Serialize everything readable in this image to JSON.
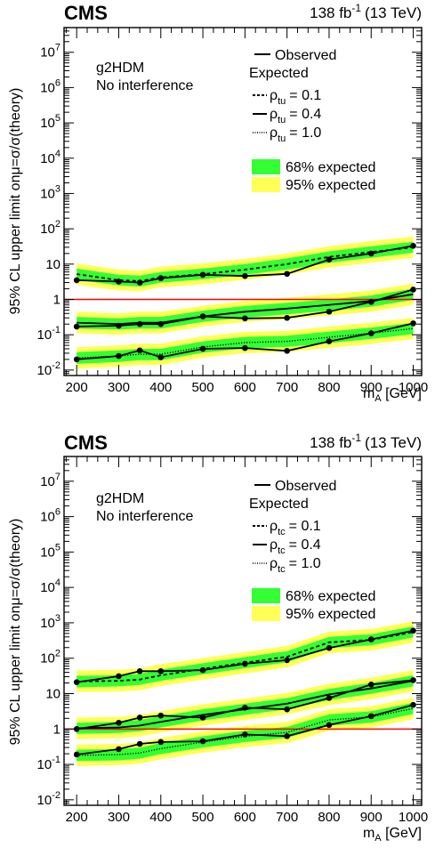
{
  "labels": {
    "experiment": "CMS",
    "lumi_value": "138 fb",
    "lumi_exp": "-1",
    "lumi_energy": "(13 TeV)",
    "model_line1": "g2HDM",
    "model_line2": "No interference",
    "observed": "Observed",
    "expected": "Expected",
    "band68": "68% expected",
    "band95": "95% expected",
    "ylabel": "95% CL upper limit onμ=σ/σ(theory)",
    "xlabel_main": "m",
    "xlabel_sub": "A",
    "xlabel_unit": " [GeV]",
    "rho_symbol": "ρ",
    "couplings": [
      {
        "value": "= 0.1",
        "style": "dashed"
      },
      {
        "value": "= 0.4",
        "style": "solid"
      },
      {
        "value": "= 1.0",
        "style": "dotted"
      }
    ]
  },
  "colors": {
    "band68": "#33ff33",
    "band95": "#ffff55",
    "reference_line": "#ff0000",
    "lines": "#000000"
  },
  "chart_data": [
    {
      "type": "line",
      "coupling_subscript": "tu",
      "x": [
        200,
        300,
        350,
        400,
        500,
        600,
        700,
        800,
        900,
        1000
      ],
      "xlim": [
        170,
        1020
      ],
      "ylim": [
        0.007,
        50000000
      ],
      "yscale": "log",
      "x_ticks": [
        200,
        300,
        400,
        500,
        600,
        700,
        800,
        900,
        1000
      ],
      "y_ticks": [
        {
          "value": 0.01,
          "label_main": "10",
          "label_exp": "-2"
        },
        {
          "value": 0.1,
          "label_main": "10",
          "label_exp": "-1"
        },
        {
          "value": 1,
          "label_main": "1",
          "label_exp": ""
        },
        {
          "value": 10,
          "label_main": "10",
          "label_exp": ""
        },
        {
          "value": 100,
          "label_main": "10",
          "label_exp": "2"
        },
        {
          "value": 1000,
          "label_main": "10",
          "label_exp": "3"
        },
        {
          "value": 10000,
          "label_main": "10",
          "label_exp": "4"
        },
        {
          "value": 100000,
          "label_main": "10",
          "label_exp": "5"
        },
        {
          "value": 1000000,
          "label_main": "10",
          "label_exp": "6"
        },
        {
          "value": 10000000,
          "label_main": "10",
          "label_exp": "7"
        }
      ],
      "reference_y": 1,
      "groups": [
        {
          "coupling": "0.1",
          "observed": [
            3.5,
            3.2,
            3.0,
            4.0,
            5.0,
            4.6,
            5.3,
            13.5,
            20.0,
            33.0
          ],
          "expected": [
            5.2,
            3.5,
            3.3,
            4.2,
            5.2,
            7.0,
            10.0,
            16.0,
            22.0,
            30.0
          ],
          "band68": [
            [
              3.6,
              7.5
            ],
            [
              2.5,
              5.0
            ],
            [
              2.3,
              4.7
            ],
            [
              3.0,
              6.0
            ],
            [
              3.7,
              7.5
            ],
            [
              5.0,
              10.0
            ],
            [
              7.0,
              14.5
            ],
            [
              11.0,
              23.0
            ],
            [
              15.0,
              32.0
            ],
            [
              21.0,
              43.0
            ]
          ],
          "band95": [
            [
              2.6,
              10.5
            ],
            [
              1.8,
              7.0
            ],
            [
              1.7,
              6.6
            ],
            [
              2.2,
              8.5
            ],
            [
              2.7,
              10.5
            ],
            [
              3.6,
              14.0
            ],
            [
              5.1,
              20.0
            ],
            [
              8.0,
              32.0
            ],
            [
              11.0,
              45.0
            ],
            [
              15.0,
              60.0
            ]
          ]
        },
        {
          "coupling": "0.4",
          "observed": [
            0.17,
            0.18,
            0.2,
            0.2,
            0.33,
            0.29,
            0.3,
            0.45,
            0.85,
            1.9
          ],
          "expected": [
            0.22,
            0.2,
            0.22,
            0.22,
            0.33,
            0.45,
            0.55,
            0.7,
            0.9,
            1.4
          ],
          "band68": [
            [
              0.15,
              0.32
            ],
            [
              0.14,
              0.29
            ],
            [
              0.15,
              0.32
            ],
            [
              0.15,
              0.32
            ],
            [
              0.23,
              0.48
            ],
            [
              0.31,
              0.65
            ],
            [
              0.38,
              0.8
            ],
            [
              0.48,
              1.0
            ],
            [
              0.62,
              1.3
            ],
            [
              0.97,
              2.0
            ]
          ],
          "band95": [
            [
              0.11,
              0.45
            ],
            [
              0.1,
              0.4
            ],
            [
              0.11,
              0.45
            ],
            [
              0.11,
              0.45
            ],
            [
              0.17,
              0.66
            ],
            [
              0.23,
              0.9
            ],
            [
              0.28,
              1.1
            ],
            [
              0.35,
              1.4
            ],
            [
              0.45,
              1.8
            ],
            [
              0.7,
              2.8
            ]
          ]
        },
        {
          "coupling": "1.0",
          "observed": [
            0.02,
            0.025,
            0.036,
            0.023,
            0.04,
            0.042,
            0.035,
            0.065,
            0.11,
            0.21
          ],
          "expected": [
            0.022,
            0.025,
            0.028,
            0.028,
            0.045,
            0.06,
            0.065,
            0.085,
            0.11,
            0.15
          ],
          "band68": [
            [
              0.015,
              0.032
            ],
            [
              0.017,
              0.036
            ],
            [
              0.019,
              0.04
            ],
            [
              0.019,
              0.04
            ],
            [
              0.031,
              0.065
            ],
            [
              0.041,
              0.087
            ],
            [
              0.045,
              0.094
            ],
            [
              0.058,
              0.123
            ],
            [
              0.076,
              0.16
            ],
            [
              0.104,
              0.217
            ]
          ],
          "band95": [
            [
              0.011,
              0.044
            ],
            [
              0.0125,
              0.05
            ],
            [
              0.014,
              0.056
            ],
            [
              0.014,
              0.056
            ],
            [
              0.0225,
              0.09
            ],
            [
              0.03,
              0.12
            ],
            [
              0.0325,
              0.13
            ],
            [
              0.0425,
              0.17
            ],
            [
              0.055,
              0.22
            ],
            [
              0.075,
              0.3
            ]
          ]
        }
      ]
    },
    {
      "type": "line",
      "coupling_subscript": "tc",
      "x": [
        200,
        300,
        350,
        400,
        500,
        600,
        700,
        800,
        900,
        1000
      ],
      "xlim": [
        170,
        1020
      ],
      "ylim": [
        0.007,
        50000000
      ],
      "yscale": "log",
      "x_ticks": [
        200,
        300,
        400,
        500,
        600,
        700,
        800,
        900,
        1000
      ],
      "y_ticks": [
        {
          "value": 0.01,
          "label_main": "10",
          "label_exp": "-2"
        },
        {
          "value": 0.1,
          "label_main": "10",
          "label_exp": "-1"
        },
        {
          "value": 1,
          "label_main": "1",
          "label_exp": ""
        },
        {
          "value": 10,
          "label_main": "10",
          "label_exp": ""
        },
        {
          "value": 100,
          "label_main": "10",
          "label_exp": "2"
        },
        {
          "value": 1000,
          "label_main": "10",
          "label_exp": "3"
        },
        {
          "value": 10000,
          "label_main": "10",
          "label_exp": "4"
        },
        {
          "value": 100000,
          "label_main": "10",
          "label_exp": "5"
        },
        {
          "value": 1000000,
          "label_main": "10",
          "label_exp": "6"
        },
        {
          "value": 10000000,
          "label_main": "10",
          "label_exp": "7"
        }
      ],
      "reference_y": 1,
      "groups": [
        {
          "coupling": "0.1",
          "observed": [
            21.0,
            31.0,
            43.0,
            43.0,
            46.0,
            70.0,
            88.0,
            195.0,
            340.0,
            600.0
          ],
          "expected": [
            22.0,
            23.0,
            25.0,
            33.0,
            50.0,
            75.0,
            110.0,
            280.0,
            330.0,
            550.0
          ],
          "band68": [
            [
              15.0,
              32.0
            ],
            [
              16.0,
              33.0
            ],
            [
              17.5,
              36.0
            ],
            [
              23.0,
              48.0
            ],
            [
              35.0,
              72.0
            ],
            [
              52.0,
              108.0
            ],
            [
              77.0,
              158.0
            ],
            [
              195.0,
              400.0
            ],
            [
              230.0,
              475.0
            ],
            [
              385.0,
              790.0
            ]
          ],
          "band95": [
            [
              11.0,
              45.0
            ],
            [
              11.5,
              47.0
            ],
            [
              12.5,
              51.0
            ],
            [
              16.5,
              68.0
            ],
            [
              25.0,
              100.0
            ],
            [
              37.0,
              150.0
            ],
            [
              55.0,
              222.0
            ],
            [
              140.0,
              560.0
            ],
            [
              165.0,
              670.0
            ],
            [
              275.0,
              1100.0
            ]
          ]
        },
        {
          "coupling": "0.4",
          "observed": [
            1.0,
            1.5,
            2.1,
            2.4,
            2.1,
            4.0,
            3.6,
            7.5,
            18.0,
            24.0
          ],
          "expected": [
            1.05,
            1.1,
            1.25,
            1.6,
            2.5,
            3.6,
            5.2,
            9.5,
            14.0,
            23.0
          ],
          "band68": [
            [
              0.73,
              1.5
            ],
            [
              0.77,
              1.6
            ],
            [
              0.87,
              1.8
            ],
            [
              1.1,
              2.3
            ],
            [
              1.75,
              3.6
            ],
            [
              2.5,
              5.2
            ],
            [
              3.6,
              7.5
            ],
            [
              6.6,
              13.7
            ],
            [
              9.8,
              20.0
            ],
            [
              16.0,
              33.0
            ]
          ],
          "band95": [
            [
              0.52,
              2.1
            ],
            [
              0.55,
              2.2
            ],
            [
              0.62,
              2.5
            ],
            [
              0.8,
              3.2
            ],
            [
              1.25,
              5.0
            ],
            [
              1.8,
              7.2
            ],
            [
              2.6,
              10.4
            ],
            [
              4.7,
              19.0
            ],
            [
              7.0,
              28.0
            ],
            [
              11.5,
              46.0
            ]
          ]
        },
        {
          "coupling": "1.0",
          "observed": [
            0.19,
            0.27,
            0.38,
            0.43,
            0.45,
            0.7,
            0.63,
            1.3,
            2.3,
            4.8
          ],
          "expected": [
            0.18,
            0.19,
            0.21,
            0.28,
            0.43,
            0.62,
            0.8,
            1.8,
            2.2,
            3.8
          ],
          "band68": [
            [
              0.125,
              0.26
            ],
            [
              0.13,
              0.27
            ],
            [
              0.145,
              0.3
            ],
            [
              0.195,
              0.4
            ],
            [
              0.3,
              0.62
            ],
            [
              0.43,
              0.89
            ],
            [
              0.56,
              1.15
            ],
            [
              1.25,
              2.6
            ],
            [
              1.5,
              3.2
            ],
            [
              2.65,
              5.5
            ]
          ],
          "band95": [
            [
              0.09,
              0.36
            ],
            [
              0.095,
              0.38
            ],
            [
              0.105,
              0.42
            ],
            [
              0.14,
              0.56
            ],
            [
              0.215,
              0.86
            ],
            [
              0.31,
              1.24
            ],
            [
              0.4,
              1.6
            ],
            [
              0.9,
              3.6
            ],
            [
              1.1,
              4.4
            ],
            [
              1.9,
              7.6
            ]
          ]
        }
      ]
    }
  ]
}
